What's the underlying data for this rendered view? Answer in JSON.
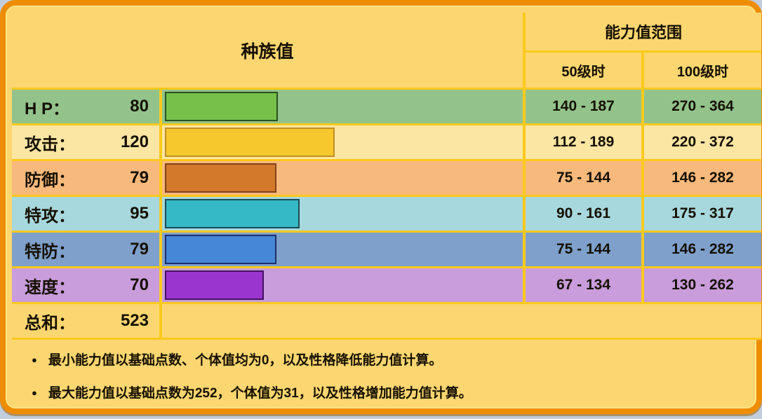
{
  "card": {
    "header": {
      "left": "种族值",
      "right": "能力值范围",
      "sub_50": "50级时",
      "sub_100": "100级时"
    },
    "stats": [
      {
        "id": "hp",
        "label": "H P：",
        "value": 80,
        "range_50": "140 - 187",
        "range_100": "270 - 364",
        "row_bg": "#93c38b",
        "bar_fill": "#77c14a",
        "bar_border": "#2b511f"
      },
      {
        "id": "attack",
        "label": "攻击：",
        "value": 120,
        "range_50": "112 - 189",
        "range_100": "220 - 372",
        "row_bg": "#fbe6a3",
        "bar_fill": "#f7c72e",
        "bar_border": "#bf8f21"
      },
      {
        "id": "defense",
        "label": "防御：",
        "value": 79,
        "range_50": "75 - 144",
        "range_100": "146 - 282",
        "row_bg": "#f8b97c",
        "bar_fill": "#d2792b",
        "bar_border": "#81421a"
      },
      {
        "id": "sp-attack",
        "label": "特攻：",
        "value": 95,
        "range_50": "90 - 161",
        "range_100": "175 - 317",
        "row_bg": "#a7d8dd",
        "bar_fill": "#36b9c6",
        "bar_border": "#1b4a52"
      },
      {
        "id": "sp-defense",
        "label": "特防：",
        "value": 79,
        "range_50": "75 - 144",
        "range_100": "146 - 282",
        "row_bg": "#7ea0cb",
        "bar_fill": "#4687d7",
        "bar_border": "#1b2f66"
      },
      {
        "id": "speed",
        "label": "速度：",
        "value": 70,
        "range_50": "67 - 134",
        "range_100": "130 - 262",
        "row_bg": "#c99cdb",
        "bar_fill": "#9a36cf",
        "bar_border": "#42125f"
      }
    ],
    "total": {
      "label": "总和：",
      "value": "523"
    },
    "bar_max": 255,
    "notes": {
      "bullet": "●",
      "items": [
        "最小能力值以基础点数、个体值均为0，以及性格降低能力值计算。",
        "最大能力值以基础点数为252，个体值为31，以及性格增加能力值计算。"
      ]
    },
    "colors": {
      "card_bg": "#fcd670",
      "border": "#ee8d00",
      "grid_line": "#fcc91d",
      "text": "#151000",
      "page_bg": "#c2cedd"
    }
  },
  "chart_data": {
    "type": "bar",
    "title": "种族值",
    "categories": [
      "HP",
      "攻击",
      "防御",
      "特攻",
      "特防",
      "速度"
    ],
    "values": [
      80,
      120,
      79,
      95,
      79,
      70
    ],
    "total": 523,
    "xlim": [
      0,
      255
    ],
    "series": [
      {
        "name": "50级时",
        "values": [
          "140 - 187",
          "112 - 189",
          "75 - 144",
          "90 - 161",
          "75 - 144",
          "67 - 134"
        ]
      },
      {
        "name": "100级时",
        "values": [
          "270 - 364",
          "220 - 372",
          "146 - 282",
          "175 - 317",
          "146 - 282",
          "130 - 262"
        ]
      }
    ],
    "legend_position": "top",
    "grid": false
  }
}
